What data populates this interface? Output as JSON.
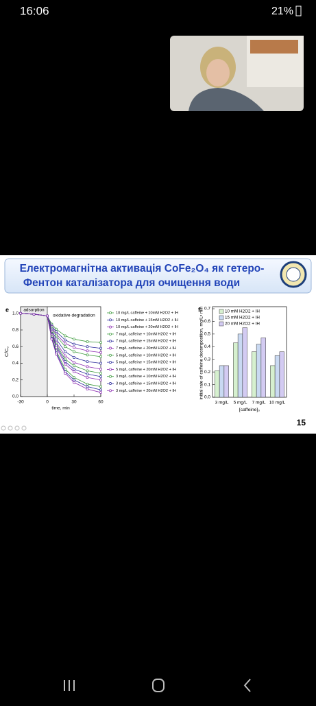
{
  "status_bar": {
    "time": "16:06",
    "battery": "21%"
  },
  "slide": {
    "title_lines": [
      "Електромагнітна активація CoFe₂O₄ як гетеро-",
      "Фентон каталізатора для очищення води"
    ],
    "page_number": "15"
  },
  "chart_data": [
    {
      "type": "line",
      "panel": "e",
      "annotations": [
        "adsorption",
        "oxidative degradation"
      ],
      "x_label": "time, min",
      "y_label": "C/C₀",
      "xlim": [
        -30,
        60
      ],
      "xticks": [
        -30,
        0,
        30,
        60
      ],
      "ylim": [
        0,
        1.08
      ],
      "yticks": [
        {
          "value": 0,
          "label": "0.0"
        },
        0.2,
        0.4,
        0.6,
        0.8,
        {
          "value": 1,
          "label": "1.0"
        }
      ],
      "x": [
        -30,
        -15,
        0,
        5,
        10,
        20,
        30,
        45,
        60
      ],
      "series": [
        {
          "name": "10 mg/L caffeine + 10mM H2O2 + IH",
          "color": "#3c9a3c",
          "values": [
            1.0,
            0.99,
            0.97,
            0.87,
            0.81,
            0.73,
            0.69,
            0.66,
            0.65
          ]
        },
        {
          "name": "10 mg/L caffeine + 15mM H2O2 + IH",
          "color": "#2b2b9c",
          "values": [
            1.0,
            0.99,
            0.97,
            0.85,
            0.78,
            0.68,
            0.63,
            0.6,
            0.58
          ]
        },
        {
          "name": "10 mg/L caffeine + 20mM H2O2 + IH",
          "color": "#8a2ab0",
          "values": [
            1.0,
            0.99,
            0.97,
            0.84,
            0.75,
            0.64,
            0.59,
            0.55,
            0.53
          ]
        },
        {
          "name": "7 mg/L caffeine + 10mM H2O2 + IH",
          "color": "#3c9a3c",
          "values": [
            1.0,
            0.99,
            0.97,
            0.82,
            0.73,
            0.6,
            0.54,
            0.5,
            0.48
          ]
        },
        {
          "name": "7 mg/L caffeine + 15mM H2O2 + IH",
          "color": "#2b2b9c",
          "values": [
            1.0,
            0.99,
            0.97,
            0.8,
            0.69,
            0.54,
            0.47,
            0.42,
            0.4
          ]
        },
        {
          "name": "7 mg/L caffeine + 20mM H2O2 + IH",
          "color": "#8a2ab0",
          "values": [
            1.0,
            0.99,
            0.97,
            0.78,
            0.65,
            0.49,
            0.41,
            0.36,
            0.33
          ]
        },
        {
          "name": "5 mg/L caffeine + 10mM H2O2 + IH",
          "color": "#3c9a3c",
          "values": [
            1.0,
            0.99,
            0.97,
            0.76,
            0.63,
            0.45,
            0.37,
            0.31,
            0.28
          ]
        },
        {
          "name": "5 mg/L caffeine + 15mM H2O2 + IH",
          "color": "#2b2b9c",
          "values": [
            1.0,
            0.99,
            0.97,
            0.75,
            0.61,
            0.42,
            0.33,
            0.27,
            0.24
          ]
        },
        {
          "name": "5 mg/L caffeine + 20mM H2O2 + IH",
          "color": "#8a2ab0",
          "values": [
            1.0,
            0.99,
            0.97,
            0.74,
            0.59,
            0.39,
            0.3,
            0.23,
            0.2
          ]
        },
        {
          "name": "3 mg/L caffeine + 10mM H2O2 + IH",
          "color": "#3c9a3c",
          "values": [
            1.0,
            0.99,
            0.97,
            0.72,
            0.55,
            0.33,
            0.23,
            0.15,
            0.12
          ]
        },
        {
          "name": "3 mg/L caffeine + 15mM H2O2 + IH",
          "color": "#2b2b9c",
          "values": [
            1.0,
            0.99,
            0.97,
            0.7,
            0.53,
            0.3,
            0.2,
            0.12,
            0.08
          ]
        },
        {
          "name": "3 mg/L caffeine + 20mM H2O2 + IH",
          "color": "#8a2ab0",
          "values": [
            1.0,
            0.99,
            0.97,
            0.69,
            0.51,
            0.28,
            0.17,
            0.09,
            0.05
          ]
        }
      ]
    },
    {
      "type": "bar",
      "panel": "f",
      "x_label": "[caffeine]₀",
      "y_label": "initial rate of caffeine decomposition, mg/L• min",
      "categories": [
        "3 mg/L",
        "5 mg/L",
        "7 mg/L",
        "10 mg/L"
      ],
      "ylim": [
        0,
        0.7
      ],
      "yticks": [
        {
          "value": 0,
          "label": "0.0"
        },
        0.1,
        0.2,
        0.3,
        0.4,
        0.5,
        0.6,
        0.7
      ],
      "series": [
        {
          "name": "10 mM H2O2 + IH",
          "color": "#d6f0cf",
          "values": [
            0.21,
            0.43,
            0.36,
            0.25
          ]
        },
        {
          "name": "15 mM H2O2 + IH",
          "color": "#c9d9f2",
          "values": [
            0.25,
            0.5,
            0.42,
            0.33
          ]
        },
        {
          "name": "20 mM H2O2 + IH",
          "color": "#d3cbf2",
          "values": [
            0.25,
            0.55,
            0.47,
            0.36
          ]
        }
      ]
    }
  ]
}
